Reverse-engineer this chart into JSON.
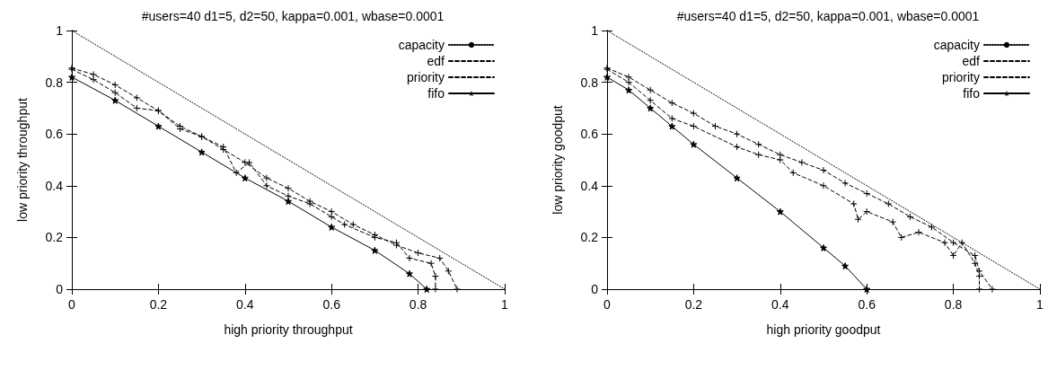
{
  "chart_data": [
    {
      "type": "line",
      "title": "#users=40 d1=5, d2=50, kappa=0.001, wbase=0.0001",
      "xlabel": "high priority throughput",
      "ylabel": "low priority throughput",
      "xlim": [
        0,
        1
      ],
      "ylim": [
        0,
        1
      ],
      "xticks": [
        0,
        0.2,
        0.4,
        0.6,
        0.8,
        1
      ],
      "yticks": [
        0,
        0.2,
        0.4,
        0.6,
        0.8,
        1
      ],
      "grid": false,
      "legend": "top right",
      "series": [
        {
          "name": "capacity",
          "color": "#000000",
          "marker": "none",
          "line_style": "dotted",
          "x": [
            0,
            1
          ],
          "values": [
            1,
            0
          ]
        },
        {
          "name": "edf",
          "color": "#000000",
          "marker": "cross",
          "line_style": "dashed",
          "x": [
            0,
            0.05,
            0.1,
            0.15,
            0.2,
            0.25,
            0.3,
            0.35,
            0.4,
            0.45,
            0.5,
            0.55,
            0.6,
            0.65,
            0.7,
            0.75,
            0.8,
            0.85,
            0.87,
            0.89
          ],
          "values": [
            0.855,
            0.83,
            0.79,
            0.74,
            0.69,
            0.63,
            0.59,
            0.54,
            0.49,
            0.43,
            0.39,
            0.34,
            0.3,
            0.25,
            0.21,
            0.17,
            0.14,
            0.12,
            0.07,
            0
          ]
        },
        {
          "name": "priority",
          "color": "#000000",
          "marker": "cross",
          "line_style": "dashed",
          "x": [
            0,
            0.05,
            0.1,
            0.15,
            0.2,
            0.25,
            0.3,
            0.35,
            0.38,
            0.41,
            0.45,
            0.5,
            0.55,
            0.6,
            0.63,
            0.7,
            0.75,
            0.78,
            0.83,
            0.84,
            0.84
          ],
          "values": [
            0.85,
            0.81,
            0.76,
            0.7,
            0.69,
            0.62,
            0.59,
            0.55,
            0.45,
            0.49,
            0.4,
            0.36,
            0.33,
            0.28,
            0.25,
            0.2,
            0.18,
            0.12,
            0.1,
            0.05,
            0
          ]
        },
        {
          "name": "fifo",
          "color": "#000000",
          "marker": "star",
          "line_style": "solid",
          "x": [
            0,
            0.1,
            0.2,
            0.3,
            0.4,
            0.5,
            0.6,
            0.7,
            0.78,
            0.82
          ],
          "values": [
            0.82,
            0.73,
            0.63,
            0.53,
            0.43,
            0.34,
            0.24,
            0.15,
            0.06,
            0
          ]
        }
      ]
    },
    {
      "type": "line",
      "title": "#users=40 d1=5, d2=50, kappa=0.001, wbase=0.0001",
      "xlabel": "high priority goodput",
      "ylabel": "low priority goodput",
      "xlim": [
        0,
        1
      ],
      "ylim": [
        0,
        1
      ],
      "xticks": [
        0,
        0.2,
        0.4,
        0.6,
        0.8,
        1
      ],
      "yticks": [
        0,
        0.2,
        0.4,
        0.6,
        0.8,
        1
      ],
      "grid": false,
      "legend": "top right",
      "series": [
        {
          "name": "capacity",
          "color": "#000000",
          "marker": "none",
          "line_style": "dotted",
          "x": [
            0,
            1
          ],
          "values": [
            1,
            0
          ]
        },
        {
          "name": "edf",
          "color": "#000000",
          "marker": "cross",
          "line_style": "dashed",
          "x": [
            0,
            0.05,
            0.1,
            0.15,
            0.2,
            0.25,
            0.3,
            0.35,
            0.4,
            0.45,
            0.5,
            0.55,
            0.6,
            0.65,
            0.7,
            0.75,
            0.8,
            0.85,
            0.86,
            0.89
          ],
          "values": [
            0.855,
            0.82,
            0.77,
            0.72,
            0.68,
            0.63,
            0.6,
            0.56,
            0.52,
            0.49,
            0.46,
            0.41,
            0.37,
            0.33,
            0.28,
            0.24,
            0.18,
            0.13,
            0.07,
            0
          ]
        },
        {
          "name": "priority",
          "color": "#000000",
          "marker": "cross",
          "line_style": "dashed",
          "x": [
            0,
            0.05,
            0.1,
            0.15,
            0.2,
            0.3,
            0.35,
            0.4,
            0.43,
            0.5,
            0.57,
            0.58,
            0.6,
            0.66,
            0.68,
            0.72,
            0.78,
            0.8,
            0.82,
            0.85,
            0.86,
            0.86
          ],
          "values": [
            0.85,
            0.8,
            0.73,
            0.66,
            0.63,
            0.55,
            0.52,
            0.5,
            0.45,
            0.4,
            0.33,
            0.27,
            0.3,
            0.26,
            0.2,
            0.22,
            0.18,
            0.13,
            0.18,
            0.1,
            0.05,
            0
          ]
        },
        {
          "name": "fifo",
          "color": "#000000",
          "marker": "star",
          "line_style": "solid",
          "x": [
            0,
            0.05,
            0.1,
            0.15,
            0.2,
            0.3,
            0.4,
            0.5,
            0.55,
            0.6
          ],
          "values": [
            0.82,
            0.77,
            0.7,
            0.63,
            0.56,
            0.43,
            0.3,
            0.16,
            0.09,
            0
          ]
        }
      ]
    }
  ]
}
